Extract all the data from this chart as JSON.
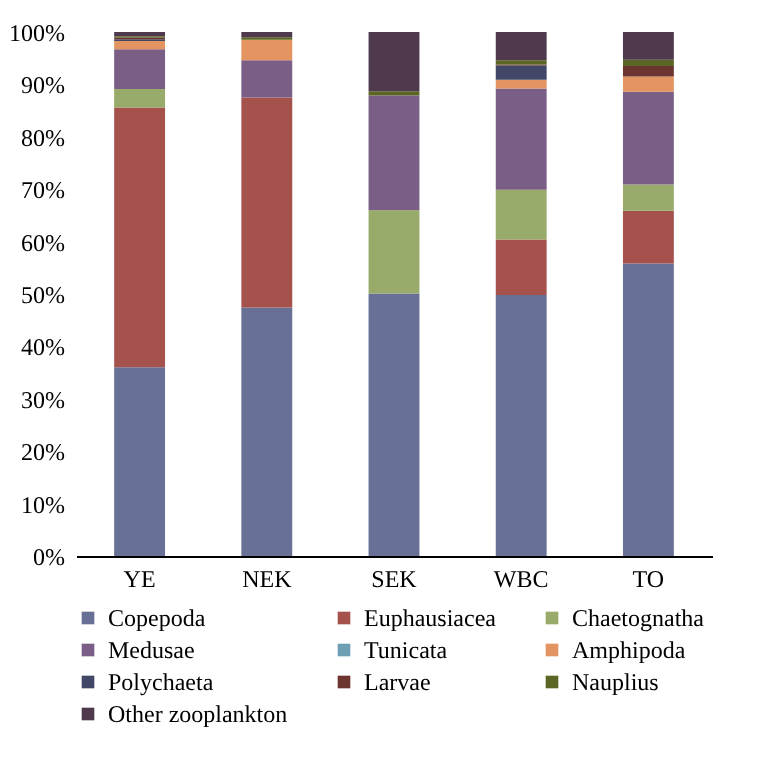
{
  "chart_data": {
    "type": "bar",
    "stacked": true,
    "categories": [
      "YE",
      "NEK",
      "SEK",
      "WBC",
      "TO"
    ],
    "series": [
      {
        "name": "Copepoda",
        "color": "#687096",
        "values": [
          36,
          47.4,
          50.1,
          49.8,
          55.8
        ]
      },
      {
        "name": "Euphausiacea",
        "color": "#a5514c",
        "values": [
          49.6,
          40.1,
          0,
          10.6,
          10.1
        ]
      },
      {
        "name": "Chaetognatha",
        "color": "#98ab6a",
        "values": [
          3.5,
          0,
          15.9,
          9.5,
          5.0
        ]
      },
      {
        "name": "Medusae",
        "color": "#7b5e85",
        "values": [
          7.6,
          7.1,
          21.9,
          19.3,
          17.7
        ]
      },
      {
        "name": "Tunicata",
        "color": "#6f9fb4",
        "values": [
          0,
          0,
          0,
          0,
          0
        ]
      },
      {
        "name": "Amphipoda",
        "color": "#e39461",
        "values": [
          1.6,
          3.9,
          0,
          1.7,
          2.9
        ]
      },
      {
        "name": "Polychaeta",
        "color": "#414766",
        "values": [
          0.3,
          0,
          0,
          2.7,
          0
        ]
      },
      {
        "name": "Larvae",
        "color": "#6c3530",
        "values": [
          0.3,
          0,
          0,
          0.2,
          2.0
        ]
      },
      {
        "name": "Nauplius",
        "color": "#5c6624",
        "values": [
          0.3,
          0.5,
          0.8,
          0.8,
          1.2
        ]
      },
      {
        "name": "Other zooplankton",
        "color": "#4f3a4d",
        "values": [
          0.8,
          1.0,
          11.3,
          5.4,
          5.3
        ]
      }
    ],
    "ylim": [
      0,
      100
    ],
    "yticks": [
      {
        "value": 0,
        "label": "0%"
      },
      {
        "value": 10,
        "label": "10%"
      },
      {
        "value": 20,
        "label": "20%"
      },
      {
        "value": 30,
        "label": "30%"
      },
      {
        "value": 40,
        "label": "40%"
      },
      {
        "value": 50,
        "label": "50%"
      },
      {
        "value": 60,
        "label": "60%"
      },
      {
        "value": 70,
        "label": "70%"
      },
      {
        "value": 80,
        "label": "80%"
      },
      {
        "value": 90,
        "label": "90%"
      },
      {
        "value": 100,
        "label": "100%"
      }
    ],
    "grid": false,
    "legend": "bottom"
  }
}
